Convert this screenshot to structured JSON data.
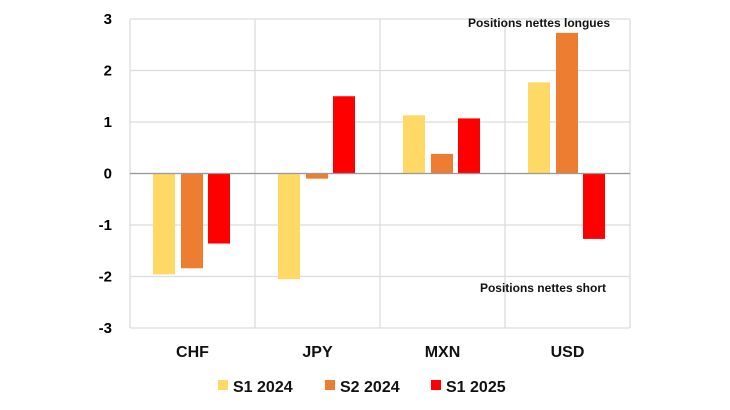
{
  "chart_data": {
    "type": "bar",
    "categories": [
      "CHF",
      "JPY",
      "MXN",
      "USD"
    ],
    "series": [
      {
        "name": "S1 2024",
        "color": "#FFD966",
        "values": [
          -1.96,
          -2.05,
          1.13,
          1.77
        ]
      },
      {
        "name": "S2 2024",
        "color": "#ED7D31",
        "values": [
          -1.84,
          -0.1,
          0.38,
          2.73
        ]
      },
      {
        "name": "S1 2025",
        "color": "#FF0000",
        "values": [
          -1.36,
          1.5,
          1.07,
          -1.27
        ]
      }
    ],
    "ylim": [
      -3,
      3
    ],
    "yticks": [
      "3",
      "2",
      "1",
      "0",
      "-1",
      "-2",
      "-3"
    ],
    "annotations": {
      "top": "Positions nettes longues",
      "bottom": "Positions nettes short"
    },
    "grid": true,
    "legend": "bottom"
  }
}
